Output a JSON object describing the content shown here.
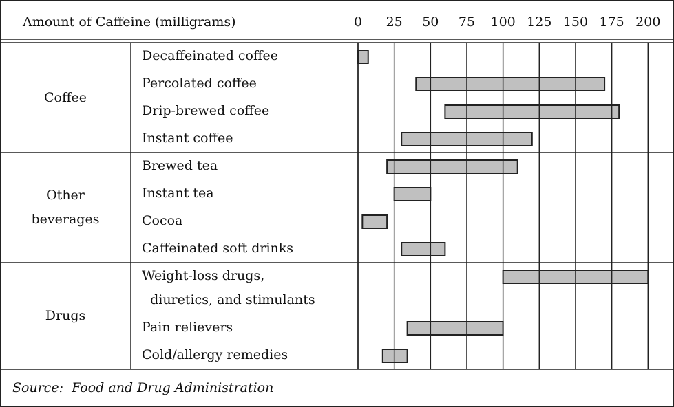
{
  "chart_data": {
    "type": "range_bar",
    "xlabel": "Amount of Caffeine (milligrams)",
    "xlim": [
      0,
      216
    ],
    "xticks": [
      0,
      25,
      50,
      75,
      100,
      125,
      150,
      175,
      200
    ],
    "grid": true,
    "color": "#c0c0c0",
    "groups": [
      {
        "name": "Coffee",
        "categories": [
          "Decaffeinated coffee",
          "Percolated coffee",
          "Drip-brewed coffee",
          "Instant coffee"
        ],
        "low": [
          0,
          40,
          60,
          30
        ],
        "high": [
          7,
          170,
          180,
          120
        ]
      },
      {
        "name": "Other\nbeverages",
        "categories": [
          "Brewed tea",
          "Instant tea",
          "Cocoa",
          "Caffeinated soft drinks"
        ],
        "low": [
          20,
          25,
          3,
          30
        ],
        "high": [
          110,
          50,
          20,
          60
        ]
      },
      {
        "name": "Drugs",
        "categories": [
          "Weight-loss drugs,\n  diuretics, and stimulants",
          "Pain relievers",
          "Cold/allergy remedies"
        ],
        "low": [
          100,
          34,
          17
        ],
        "high": [
          200,
          100,
          34
        ]
      }
    ],
    "source": "Source:  Food and Drug Administration"
  }
}
